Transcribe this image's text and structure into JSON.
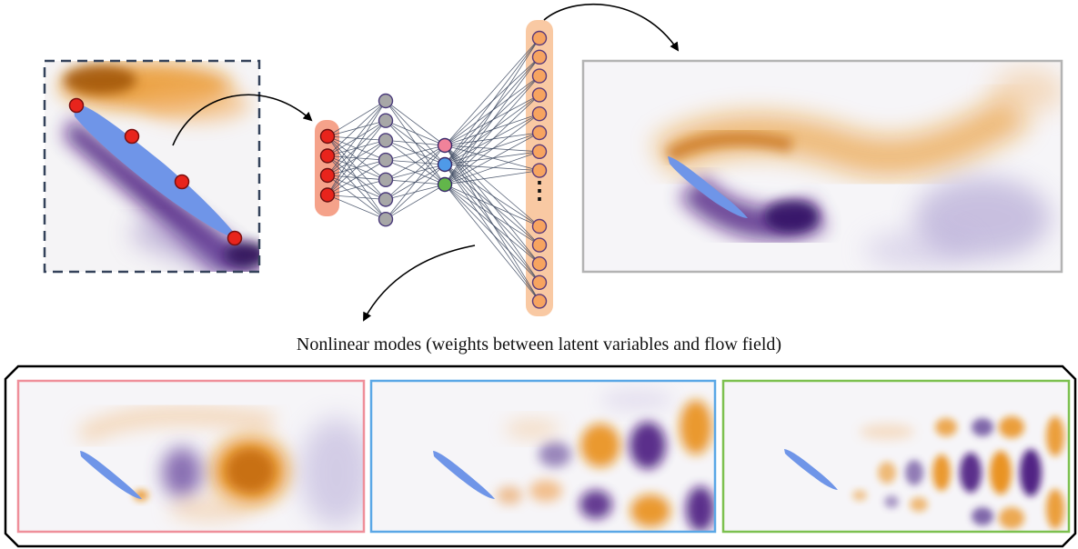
{
  "caption": "Nonlinear modes (weights between latent variables and flow field)",
  "colors": {
    "positive": "#e8890f",
    "negative": "#3f0e78",
    "airfoil": "#6f95e8",
    "sensor": "#e8241c",
    "encoder_band": "#f5a28a",
    "decoder_band": "#f9c9a3",
    "hidden_node": "#a7a7a7",
    "latent_nodes": [
      "#f0829a",
      "#4f9ae8",
      "#62b64a"
    ],
    "output_node": "#f7a460",
    "mode_frames": [
      "#ef8f9a",
      "#5aa7e6",
      "#7cc04f"
    ],
    "field_frame": "#b3b3b3",
    "sensor_box_border": "#34425a"
  },
  "network": {
    "input_nodes": 4,
    "hidden_nodes": 7,
    "latent_nodes": 3,
    "output_nodes_top": 8,
    "output_nodes_bottom": 5,
    "ellipsis": "⋮"
  },
  "panels": {
    "sensor_view": {
      "sensors": 4
    },
    "reconstructed_field": {},
    "modes": [
      {
        "name": "mode-1"
      },
      {
        "name": "mode-2"
      },
      {
        "name": "mode-3"
      }
    ]
  }
}
